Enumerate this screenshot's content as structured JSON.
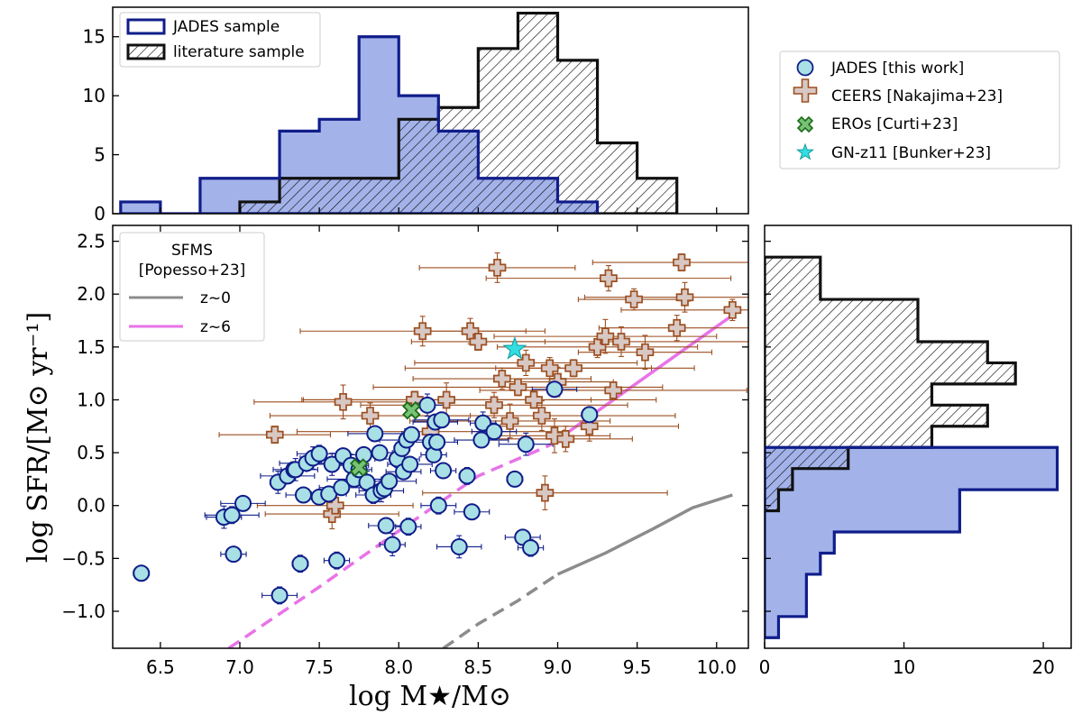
{
  "chart_data": [
    {
      "panel": "top-histogram",
      "type": "histogram",
      "title": "",
      "xlabel": "",
      "ylabel": "",
      "xlim": [
        6.2,
        10.2
      ],
      "ylim": [
        0,
        17.5
      ],
      "yticks": [
        0,
        5,
        10,
        15
      ],
      "legend": {
        "placement": "top-left",
        "entries": [
          "JADES sample",
          "literature sample"
        ]
      },
      "series": [
        {
          "name": "JADES sample",
          "style": "filled",
          "color": "#a3b3ea",
          "edge": "#101d8a",
          "bins": [
            6.25,
            6.5,
            6.75,
            7.0,
            7.25,
            7.5,
            7.75,
            8.0,
            8.25,
            8.5,
            8.75,
            9.0,
            9.25
          ],
          "counts": [
            1,
            0,
            3,
            3,
            7,
            8,
            15,
            10,
            7,
            3,
            3,
            1
          ]
        },
        {
          "name": "literature sample",
          "style": "hatched",
          "color": "#ffffff",
          "edge": "#111111",
          "bins": [
            7.0,
            7.25,
            7.5,
            7.75,
            8.0,
            8.25,
            8.5,
            8.75,
            9.0,
            9.25,
            9.5,
            9.75
          ],
          "counts": [
            1,
            3,
            3,
            3,
            8,
            9,
            14,
            17,
            13,
            6,
            3
          ]
        }
      ]
    },
    {
      "panel": "main-scatter",
      "type": "scatter",
      "title": "",
      "xlabel": "log M★/M⊙",
      "ylabel": "log SFR/[M⊙ yr⁻¹]",
      "xlim": [
        6.2,
        10.2
      ],
      "ylim": [
        -1.35,
        2.65
      ],
      "xticks": [
        6.5,
        7.0,
        7.5,
        8.0,
        8.5,
        9.0,
        9.5,
        10.0
      ],
      "xtick_labels": [
        "6.5",
        "7.0",
        "7.5",
        "8.0",
        "8.5",
        "9.0",
        "9.5",
        "10.0"
      ],
      "yticks": [
        -1.0,
        -0.5,
        0.0,
        0.5,
        1.0,
        1.5,
        2.0,
        2.5
      ],
      "ytick_labels": [
        "−1.0",
        "−0.5",
        "0.0",
        "0.5",
        "1.0",
        "1.5",
        "2.0",
        "2.5"
      ],
      "sfms_legend": {
        "title_line1": "SFMS",
        "title_line2": "[Popesso+23]",
        "entries": [
          "z~0",
          "z~6"
        ]
      },
      "sfms": [
        {
          "name": "z~0",
          "color": "#8c8c8c",
          "solid": [
            [
              9.0,
              -0.65
            ],
            [
              9.3,
              -0.45
            ],
            [
              9.6,
              -0.22
            ],
            [
              9.85,
              -0.02
            ],
            [
              10.1,
              0.1
            ]
          ],
          "dashed": [
            [
              8.28,
              -1.35
            ],
            [
              8.5,
              -1.12
            ],
            [
              8.75,
              -0.9
            ],
            [
              9.0,
              -0.65
            ]
          ]
        },
        {
          "name": "z~6",
          "color": "#e873e8",
          "solid": [
            [
              8.95,
              0.57
            ],
            [
              9.5,
              1.16
            ],
            [
              10.1,
              1.8
            ]
          ],
          "dashed": [
            [
              6.93,
              -1.35
            ],
            [
              7.5,
              -0.77
            ],
            [
              8.0,
              -0.24
            ],
            [
              8.5,
              0.28
            ],
            [
              8.95,
              0.57
            ]
          ]
        }
      ],
      "series": [
        {
          "name": "JADES [this work]",
          "marker": "circle",
          "color": "#a8e0e5",
          "edge": "#101d8a",
          "points": [
            [
              6.38,
              -0.64
            ],
            [
              6.9,
              -0.11
            ],
            [
              6.95,
              -0.09
            ],
            [
              6.96,
              -0.46
            ],
            [
              7.02,
              0.02
            ],
            [
              7.24,
              0.22
            ],
            [
              7.25,
              -0.85
            ],
            [
              7.3,
              0.28
            ],
            [
              7.34,
              0.34
            ],
            [
              7.35,
              0.34
            ],
            [
              7.38,
              -0.55
            ],
            [
              7.4,
              0.1
            ],
            [
              7.42,
              0.4
            ],
            [
              7.46,
              0.45
            ],
            [
              7.5,
              0.49
            ],
            [
              7.5,
              0.08
            ],
            [
              7.56,
              0.11
            ],
            [
              7.58,
              0.39
            ],
            [
              7.61,
              -0.52
            ],
            [
              7.64,
              0.17
            ],
            [
              7.65,
              0.47
            ],
            [
              7.7,
              0.38
            ],
            [
              7.72,
              0.25
            ],
            [
              7.75,
              0.34
            ],
            [
              7.78,
              0.48
            ],
            [
              7.8,
              0.22
            ],
            [
              7.84,
              0.1
            ],
            [
              7.85,
              0.68
            ],
            [
              7.88,
              0.5
            ],
            [
              7.89,
              0.14
            ],
            [
              7.91,
              0.16
            ],
            [
              7.92,
              -0.19
            ],
            [
              7.94,
              0.23
            ],
            [
              7.96,
              -0.37
            ],
            [
              7.99,
              0.44
            ],
            [
              8.02,
              0.54
            ],
            [
              8.03,
              0.32
            ],
            [
              8.05,
              0.62
            ],
            [
              8.06,
              -0.2
            ],
            [
              8.07,
              0.39
            ],
            [
              8.08,
              0.67
            ],
            [
              8.18,
              0.95
            ],
            [
              8.2,
              0.6
            ],
            [
              8.22,
              0.48
            ],
            [
              8.23,
              0.79
            ],
            [
              8.24,
              0.6
            ],
            [
              8.25,
              0.0
            ],
            [
              8.27,
              0.81
            ],
            [
              8.28,
              0.33
            ],
            [
              8.38,
              -0.39
            ],
            [
              8.43,
              0.28
            ],
            [
              8.46,
              -0.06
            ],
            [
              8.52,
              0.62
            ],
            [
              8.53,
              0.78
            ],
            [
              8.6,
              0.7
            ],
            [
              8.73,
              0.25
            ],
            [
              8.78,
              -0.3
            ],
            [
              8.8,
              0.58
            ],
            [
              8.83,
              -0.4
            ],
            [
              8.98,
              1.1
            ],
            [
              9.2,
              0.86
            ]
          ]
        },
        {
          "name": "CEERS [Nakajima+23]",
          "marker": "plus",
          "color": "#d8c8c4",
          "edge": "#9c4f21",
          "points": [
            [
              7.22,
              0.67
            ],
            [
              7.58,
              -0.08
            ],
            [
              7.6,
              0.0
            ],
            [
              7.65,
              0.98
            ],
            [
              7.82,
              0.85
            ],
            [
              8.1,
              1.0
            ],
            [
              8.15,
              1.65
            ],
            [
              8.2,
              0.7
            ],
            [
              8.3,
              1.0
            ],
            [
              8.45,
              1.65
            ],
            [
              8.5,
              1.55
            ],
            [
              8.62,
              2.25
            ],
            [
              8.65,
              1.2
            ],
            [
              8.7,
              0.8
            ],
            [
              8.8,
              1.35
            ],
            [
              8.85,
              1.0
            ],
            [
              8.9,
              0.85
            ],
            [
              8.95,
              1.3
            ],
            [
              8.98,
              0.66
            ],
            [
              9.05,
              0.63
            ],
            [
              9.1,
              1.3
            ],
            [
              9.2,
              0.75
            ],
            [
              9.25,
              1.5
            ],
            [
              9.3,
              1.6
            ],
            [
              9.32,
              2.15
            ],
            [
              9.35,
              1.09
            ],
            [
              9.4,
              1.55
            ],
            [
              9.48,
              1.95
            ],
            [
              9.55,
              1.45
            ],
            [
              9.75,
              1.68
            ],
            [
              9.78,
              2.3
            ],
            [
              9.8,
              1.97
            ],
            [
              10.1,
              1.85
            ],
            [
              8.92,
              0.12
            ],
            [
              8.6,
              0.95
            ],
            [
              8.75,
              1.12
            ],
            [
              9.0,
              1.17
            ]
          ]
        },
        {
          "name": "EROs [Curti+23]",
          "marker": "x",
          "color": "#77c277",
          "edge": "#1e6b18",
          "points": [
            [
              7.75,
              0.36
            ],
            [
              8.08,
              0.9
            ]
          ]
        },
        {
          "name": "GN-z11 [Bunker+23]",
          "marker": "star",
          "color": "#33dde0",
          "edge": "#1a9ca0",
          "points": [
            [
              8.73,
              1.48
            ]
          ]
        }
      ]
    },
    {
      "panel": "right-histogram",
      "type": "histogram",
      "orientation": "horizontal",
      "xlim": [
        0,
        22
      ],
      "ylim": [
        -1.35,
        2.65
      ],
      "xticks": [
        0,
        10,
        20
      ],
      "series": [
        {
          "name": "JADES sample",
          "style": "filled",
          "color": "#a3b3ea",
          "edge": "#101d8a",
          "bins": [
            -1.25,
            -1.05,
            -0.85,
            -0.65,
            -0.45,
            -0.25,
            -0.05,
            0.15,
            0.35,
            0.55
          ],
          "counts": [
            1,
            3,
            3,
            4,
            5,
            14,
            14,
            21,
            21
          ]
        },
        {
          "name": "literature sample",
          "style": "hatched",
          "color": "#ffffff",
          "edge": "#111111",
          "bins": [
            -0.05,
            0.15,
            0.35,
            0.55,
            0.75,
            0.95,
            1.15,
            1.35,
            1.55,
            1.75,
            1.95,
            2.15,
            2.35
          ],
          "counts": [
            1,
            2,
            6,
            12,
            16,
            12,
            18,
            16,
            11,
            11,
            4,
            4
          ]
        }
      ]
    }
  ],
  "legend_main": {
    "entries": [
      "JADES [this work]",
      "CEERS [Nakajima+23]",
      "EROs [Curti+23]",
      "GN-z11 [Bunker+23]"
    ]
  }
}
